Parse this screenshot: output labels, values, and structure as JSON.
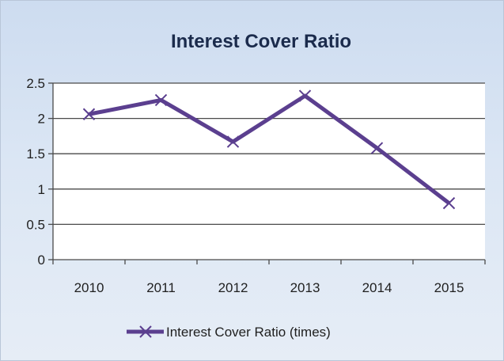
{
  "chart_data": {
    "type": "line",
    "title": "Interest Cover Ratio",
    "categories": [
      "2010",
      "2011",
      "2012",
      "2013",
      "2014",
      "2015"
    ],
    "series": [
      {
        "name": "Interest Cover Ratio (times)",
        "values": [
          2.06,
          2.26,
          1.67,
          2.32,
          1.58,
          0.8
        ],
        "color": "#5b3f8f",
        "marker": "x"
      }
    ],
    "ylim": [
      0,
      2.5
    ],
    "yticks": [
      "0",
      "0.5",
      "1",
      "1.5",
      "2",
      "2.5"
    ],
    "grid": true,
    "legend_position": "bottom",
    "plot_background": "#ffffff"
  }
}
